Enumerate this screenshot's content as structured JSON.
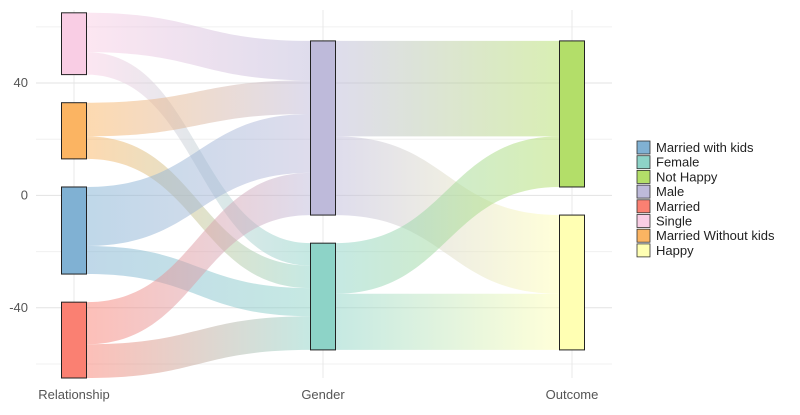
{
  "chart_data": {
    "type": "sankey",
    "title": "",
    "xlabel": "",
    "ylabel": "",
    "ylim": [
      -65,
      66
    ],
    "y_ticks": [
      40,
      0,
      -40
    ],
    "y_tick_labels": [
      "40",
      "0",
      "-40"
    ],
    "grid": true,
    "legend_position": "right",
    "axes": [
      "Relationship",
      "Gender",
      "Outcome"
    ],
    "nodes": [
      {
        "id": "single",
        "label": "Single",
        "axis": 0,
        "color": "#F9CDE4",
        "y0": 43,
        "y1": 65
      },
      {
        "id": "mwok",
        "label": "Married Without kids",
        "axis": 0,
        "color": "#FBB462",
        "y0": 13,
        "y1": 33
      },
      {
        "id": "mwk",
        "label": "Married with kids",
        "axis": 0,
        "color": "#80B1D3",
        "y0": -28,
        "y1": 3
      },
      {
        "id": "married",
        "label": "Married",
        "axis": 0,
        "color": "#FA8072",
        "y0": -65,
        "y1": -38
      },
      {
        "id": "male",
        "label": "Male",
        "axis": 1,
        "color": "#BEBADA",
        "y0": -7,
        "y1": 55
      },
      {
        "id": "female",
        "label": "Female",
        "axis": 1,
        "color": "#8DD3C7",
        "y0": -55,
        "y1": -17
      },
      {
        "id": "nothappy",
        "label": "Not Happy",
        "axis": 2,
        "color": "#B3DE69",
        "y0": 3,
        "y1": 55
      },
      {
        "id": "happy",
        "label": "Happy",
        "axis": 2,
        "color": "#FFFFB3",
        "y0": -55,
        "y1": -7
      }
    ],
    "links": [
      {
        "source": "single",
        "target": "male",
        "value": 14
      },
      {
        "source": "single",
        "target": "female",
        "value": 8
      },
      {
        "source": "mwok",
        "target": "male",
        "value": 12
      },
      {
        "source": "mwok",
        "target": "female",
        "value": 8
      },
      {
        "source": "mwk",
        "target": "male",
        "value": 21
      },
      {
        "source": "mwk",
        "target": "female",
        "value": 10
      },
      {
        "source": "married",
        "target": "male",
        "value": 15
      },
      {
        "source": "married",
        "target": "female",
        "value": 12
      },
      {
        "source": "male",
        "target": "nothappy",
        "value": 34
      },
      {
        "source": "male",
        "target": "happy",
        "value": 28
      },
      {
        "source": "female",
        "target": "nothappy",
        "value": 18
      },
      {
        "source": "female",
        "target": "happy",
        "value": 20
      }
    ],
    "legend": [
      {
        "label": "Married with kids",
        "color": "#80B1D3"
      },
      {
        "label": "Female",
        "color": "#8DD3C7"
      },
      {
        "label": "Not Happy",
        "color": "#B3DE69"
      },
      {
        "label": "Male",
        "color": "#BEBADA"
      },
      {
        "label": "Married",
        "color": "#FA8072"
      },
      {
        "label": "Single",
        "color": "#F9CDE4"
      },
      {
        "label": "Married Without kids",
        "color": "#FBB462"
      },
      {
        "label": "Happy",
        "color": "#FFFFB3"
      }
    ]
  }
}
